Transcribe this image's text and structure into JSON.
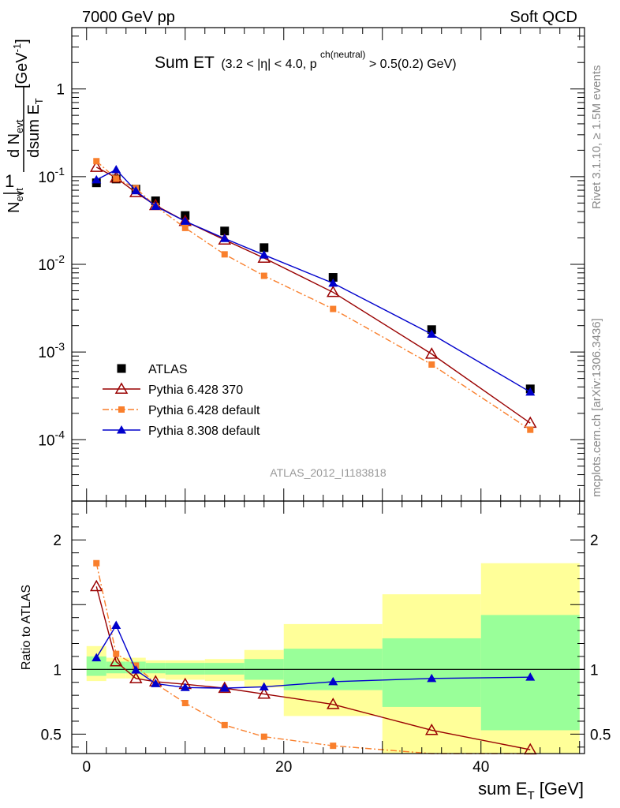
{
  "header": {
    "left": "7000 GeV pp",
    "right": "Soft QCD"
  },
  "side_text": {
    "rivet": "Rivet 3.1.10, ≥ 1.5M events",
    "mcplots": "mcplots.cern.ch [arXiv:1306.3436]"
  },
  "chart_data": [
    {
      "type": "scatter",
      "title_main": "Sum ET",
      "title_cut_a": "(3.2 < |η| < 4.0, p",
      "title_cut_sup": "ch(neutral)",
      "title_cut_b": " > 0.5(0.2) GeV)",
      "ylabel": "1/N_evt dN_evt/dsum E_T [GeV^-1]",
      "xlabel": "",
      "y_scale": "log",
      "xlim": [
        -1.5,
        50.5
      ],
      "ylim": [
        2e-05,
        5
      ],
      "y_tick_labels": [
        "10^-4",
        "10^-3",
        "10^-2",
        "10^-1",
        "1"
      ],
      "watermark": "ATLAS_2012_I1183818",
      "legend_position": "bottom-left",
      "series": [
        {
          "name": "ATLAS",
          "color": "#000000",
          "marker": "filled-square",
          "line": "none",
          "x": [
            1,
            3,
            5,
            7,
            10,
            14,
            18,
            25,
            35,
            45
          ],
          "values": [
            0.085,
            0.094,
            0.072,
            0.053,
            0.036,
            0.024,
            0.0155,
            0.0071,
            0.0018,
            0.00038
          ]
        },
        {
          "name": "Pythia 6.428 370",
          "color": "#990000",
          "marker": "open-triangle",
          "line": "solid",
          "x": [
            1,
            3,
            5,
            7,
            10,
            14,
            18,
            25,
            35,
            45
          ],
          "values": [
            0.128,
            0.097,
            0.066,
            0.047,
            0.031,
            0.019,
            0.0118,
            0.0048,
            0.00095,
            0.000155
          ]
        },
        {
          "name": "Pythia 6.428 default",
          "color": "#f97f2c",
          "marker": "filled-square-small",
          "line": "dashdot",
          "x": [
            1,
            3,
            5,
            7,
            10,
            14,
            18,
            25,
            35,
            45
          ],
          "values": [
            0.15,
            0.095,
            0.074,
            0.046,
            0.026,
            0.013,
            0.0074,
            0.0031,
            0.00072,
            0.00013
          ]
        },
        {
          "name": "Pythia 8.308 default",
          "color": "#0000cc",
          "marker": "filled-triangle",
          "line": "solid",
          "x": [
            1,
            3,
            5,
            7,
            10,
            14,
            18,
            25,
            35,
            45
          ],
          "values": [
            0.092,
            0.12,
            0.069,
            0.046,
            0.031,
            0.0197,
            0.0128,
            0.0061,
            0.0016,
            0.00035
          ]
        }
      ]
    },
    {
      "type": "line",
      "xlabel": "sum E_T [GeV]",
      "ylabel": "Ratio to ATLAS",
      "xlim": [
        -1.5,
        50.5
      ],
      "ylim": [
        0.35,
        2.3
      ],
      "x_tick_labels": [
        "0",
        "20",
        "40"
      ],
      "y_tick_labels": [
        "0.5",
        "1",
        "2"
      ],
      "reference_line": 1,
      "bands": {
        "bins": [
          [
            0,
            2
          ],
          [
            2,
            4
          ],
          [
            4,
            6
          ],
          [
            6,
            8
          ],
          [
            8,
            12
          ],
          [
            12,
            16
          ],
          [
            16,
            20
          ],
          [
            20,
            30
          ],
          [
            30,
            40
          ],
          [
            40,
            50
          ]
        ],
        "stat_color": "#99ff99",
        "total_color": "#ffff99",
        "stat_lo": [
          0.95,
          0.97,
          0.97,
          0.97,
          0.96,
          0.96,
          0.92,
          0.84,
          0.71,
          0.53
        ],
        "stat_hi": [
          1.1,
          1.06,
          1.06,
          1.05,
          1.05,
          1.05,
          1.08,
          1.16,
          1.24,
          1.42
        ],
        "total_lo": [
          0.91,
          0.93,
          0.93,
          0.93,
          0.92,
          0.91,
          0.86,
          0.64,
          0.35,
          0.35
        ],
        "total_hi": [
          1.18,
          1.09,
          1.09,
          1.07,
          1.07,
          1.08,
          1.15,
          1.35,
          1.58,
          1.82
        ]
      },
      "series": [
        {
          "name": "Pythia 6.428 370",
          "color": "#990000",
          "marker": "open-triangle",
          "line": "solid",
          "x": [
            1,
            3,
            5,
            7,
            10,
            14,
            18,
            25,
            35,
            45
          ],
          "values": [
            1.64,
            1.06,
            0.93,
            0.905,
            0.885,
            0.855,
            0.81,
            0.73,
            0.53,
            0.38
          ]
        },
        {
          "name": "Pythia 6.428 default",
          "color": "#f97f2c",
          "marker": "filled-square-small",
          "line": "dashdot",
          "x": [
            1,
            3,
            5,
            7,
            10,
            14,
            18,
            25,
            35,
            45
          ],
          "values": [
            1.82,
            1.12,
            1.03,
            0.89,
            0.74,
            0.57,
            0.48,
            0.41,
            0.345,
            0.335
          ]
        },
        {
          "name": "Pythia 8.308 default",
          "color": "#0000cc",
          "marker": "filled-triangle",
          "line": "solid",
          "x": [
            1,
            3,
            5,
            7,
            10,
            14,
            18,
            25,
            35,
            45
          ],
          "values": [
            1.09,
            1.34,
            0.995,
            0.89,
            0.86,
            0.855,
            0.865,
            0.905,
            0.93,
            0.94
          ]
        }
      ]
    }
  ]
}
